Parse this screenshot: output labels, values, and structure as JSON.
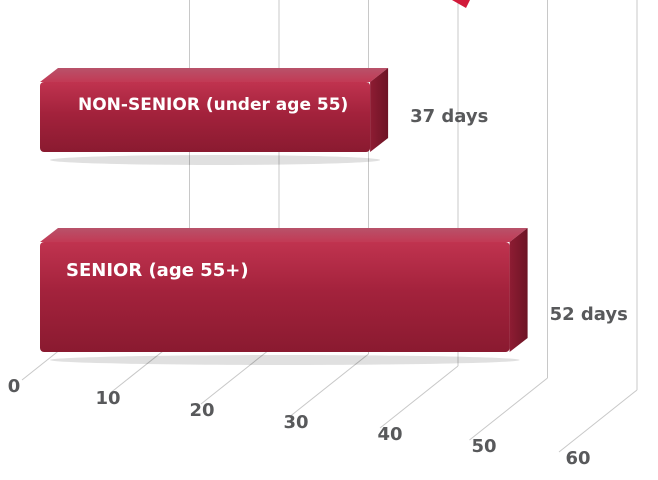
{
  "chart_data": {
    "type": "bar",
    "orientation": "horizontal",
    "style": "3d",
    "bar_color": "#a4263f",
    "categories": [
      "NON-SENIOR (under age 55)",
      "SENIOR (age 55+)"
    ],
    "values": [
      37,
      52
    ],
    "value_labels": [
      "37 days",
      "52 days"
    ],
    "x_ticks": [
      "0",
      "10",
      "20",
      "30",
      "40",
      "50",
      "60"
    ],
    "xlim": [
      0,
      60
    ],
    "grid": true,
    "legend": "none"
  }
}
